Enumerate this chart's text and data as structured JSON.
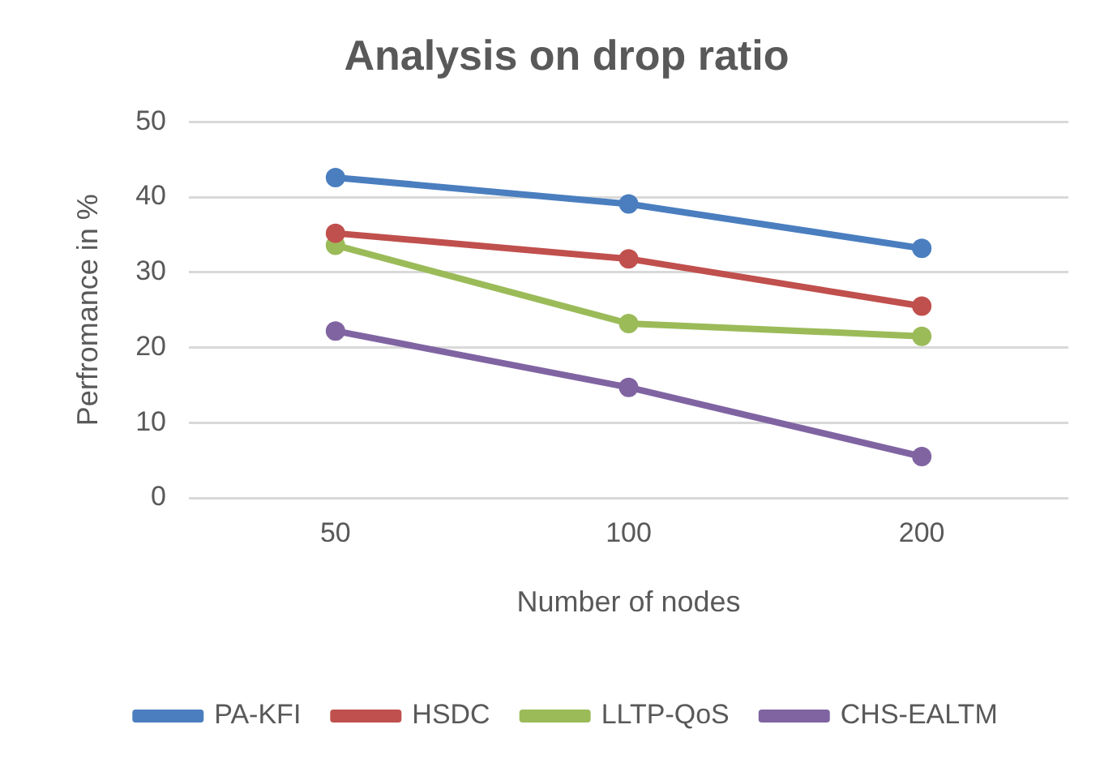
{
  "chart_data": {
    "type": "line",
    "title": "Analysis on drop ratio",
    "xlabel": "Number of nodes",
    "ylabel": "Perfromance in %",
    "categories": [
      "50",
      "100",
      "200"
    ],
    "series": [
      {
        "name": "PA-KFI",
        "color": "#4a7ebf",
        "values": [
          42.6,
          39.1,
          33.2
        ]
      },
      {
        "name": "HSDC",
        "color": "#c0504d",
        "values": [
          35.2,
          31.8,
          25.5
        ]
      },
      {
        "name": "LLTP-QoS",
        "color": "#9bbb59",
        "values": [
          33.6,
          23.2,
          21.5
        ]
      },
      {
        "name": "CHS-EALTM",
        "color": "#8064a2",
        "values": [
          22.2,
          14.7,
          5.5
        ]
      }
    ],
    "ylim": [
      0,
      50
    ],
    "yticks": [
      0,
      10,
      20,
      30,
      40,
      50
    ],
    "grid": "y",
    "legend": "bottom",
    "marker": "circle",
    "line_style": "solid"
  }
}
